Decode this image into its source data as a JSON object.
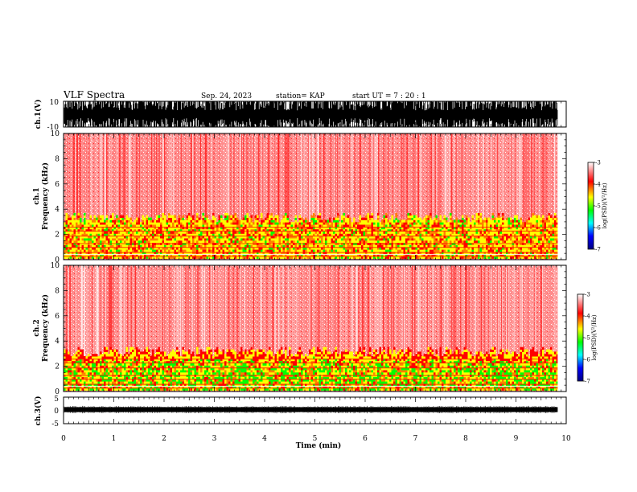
{
  "header": {
    "title": "VLF Spectra",
    "date": "Sep. 24, 2023",
    "station": "station= KAP",
    "start_ut": "start  UT  =   7 : 20 : 1"
  },
  "chart_data": [
    {
      "type": "line",
      "name": "ch1-waveform",
      "ylabel": "ch.1(V)",
      "ylim": [
        -10,
        10
      ],
      "yticks": [
        "10",
        "-10"
      ],
      "xlim": [
        0,
        10
      ],
      "data_extent_min": 9.83
    },
    {
      "type": "heatmap",
      "name": "ch1-spectrogram",
      "ylabel_top": "ch.1",
      "ylabel": "Frequency  (kHz)",
      "ylim": [
        0,
        10
      ],
      "yticks": [
        "0",
        "2",
        "4",
        "6",
        "8",
        "10"
      ],
      "xlim": [
        0,
        10
      ],
      "colorbar": {
        "label": "log(PSD)(V²/Hz)",
        "range": [
          -7,
          -3
        ],
        "ticks": [
          "-3",
          "-4",
          "-5",
          "-6",
          "-7"
        ]
      }
    },
    {
      "type": "heatmap",
      "name": "ch2-spectrogram",
      "ylabel_top": "ch.2",
      "ylabel": "Frequency  (kHz)",
      "ylim": [
        0,
        10
      ],
      "yticks": [
        "0",
        "2",
        "4",
        "6",
        "8",
        "10"
      ],
      "xlim": [
        0,
        10
      ],
      "colorbar": {
        "label": "log(PSD)(V²/Hz)",
        "range": [
          -7,
          -3
        ],
        "ticks": [
          "-3",
          "-4",
          "-5",
          "-6",
          "-7"
        ]
      }
    },
    {
      "type": "line",
      "name": "ch3-waveform",
      "ylabel": "ch.3(V)",
      "ylim": [
        -5,
        5
      ],
      "yticks": [
        "5",
        "0",
        "-5"
      ],
      "xlim": [
        0,
        10
      ],
      "data_extent_min": 9.83
    }
  ],
  "xaxis": {
    "label": "Time  (min)",
    "ticks": [
      "0",
      "1",
      "2",
      "3",
      "4",
      "5",
      "6",
      "7",
      "8",
      "9",
      "10"
    ]
  },
  "colors": {
    "spectrogram_bg": "#ff9a9a",
    "scale": [
      "#000080",
      "#0000ff",
      "#00ffff",
      "#00ff00",
      "#ffff00",
      "#ff0000",
      "#ffffff"
    ]
  }
}
